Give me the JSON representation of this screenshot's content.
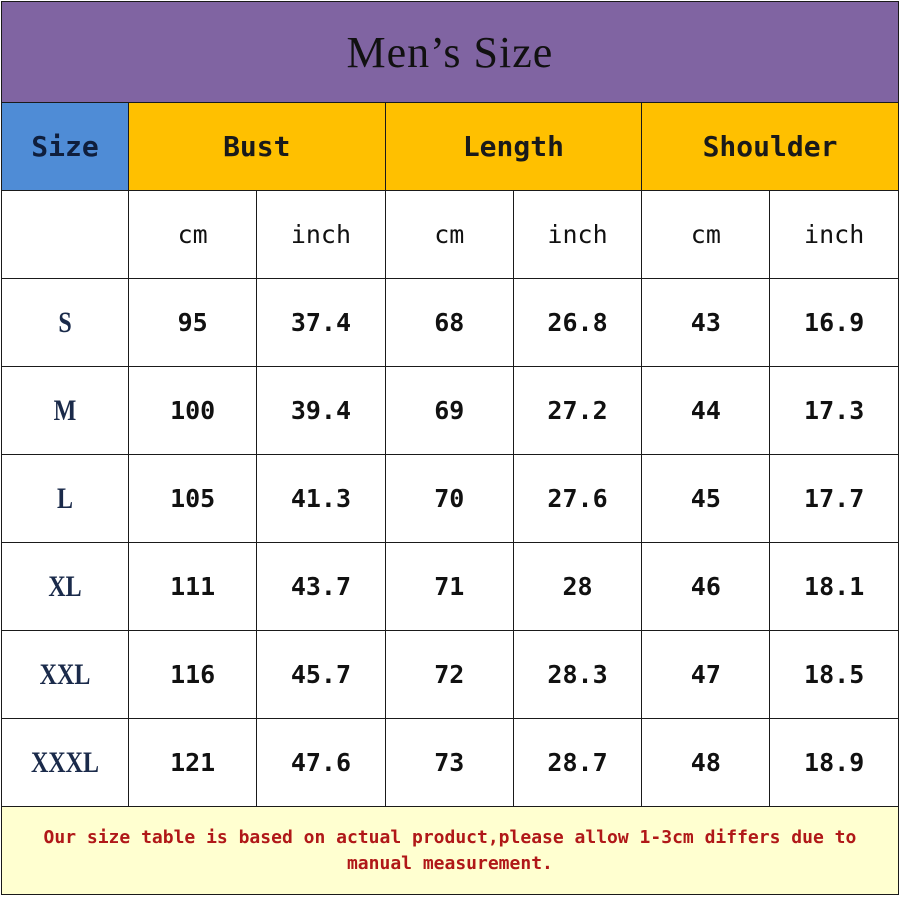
{
  "title": "Men’s Size",
  "headers": {
    "size": "Size",
    "groups": [
      "Bust",
      "Length",
      "Shoulder"
    ]
  },
  "units": [
    "cm",
    "inch",
    "cm",
    "inch",
    "cm",
    "inch"
  ],
  "rows": [
    {
      "size": "S",
      "values": [
        "95",
        "37.4",
        "68",
        "26.8",
        "43",
        "16.9"
      ]
    },
    {
      "size": "M",
      "values": [
        "100",
        "39.4",
        "69",
        "27.2",
        "44",
        "17.3"
      ]
    },
    {
      "size": "L",
      "values": [
        "105",
        "41.3",
        "70",
        "27.6",
        "45",
        "17.7"
      ]
    },
    {
      "size": "XL",
      "values": [
        "111",
        "43.7",
        "71",
        "28",
        "46",
        "18.1"
      ]
    },
    {
      "size": "XXL",
      "values": [
        "116",
        "45.7",
        "72",
        "28.3",
        "47",
        "18.5"
      ]
    },
    {
      "size": "XXXL",
      "values": [
        "121",
        "47.6",
        "73",
        "28.7",
        "48",
        "18.9"
      ]
    }
  ],
  "footer_note": "Our size table is based on actual product,please allow 1-3cm differs due to manual measurement.",
  "colors": {
    "title_bg": "#8064A2",
    "size_column": "#4F8CD6",
    "group_header": "#FFC000",
    "footer_bg": "#FFFFD0",
    "footer_text": "#B01818"
  }
}
